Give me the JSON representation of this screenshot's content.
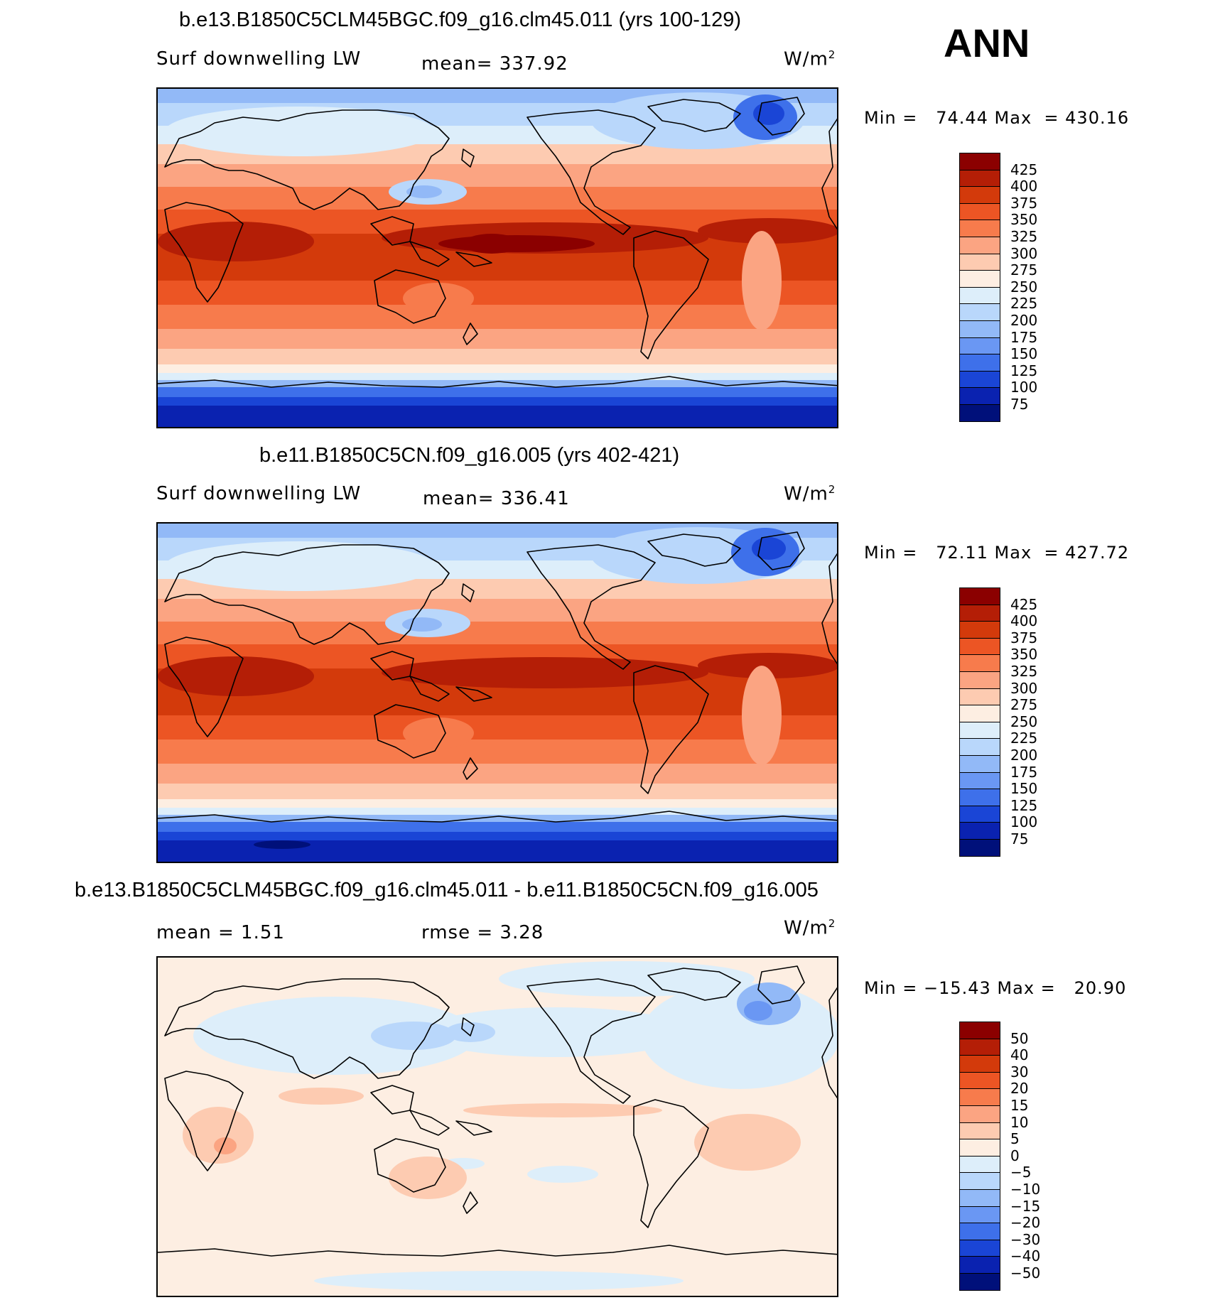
{
  "header": {
    "season": "ANN"
  },
  "panels": [
    {
      "title": "b.e13.B1850C5CLM45BGC.f09_g16.clm45.011 (yrs 100-129)",
      "variable": "Surf downwelling LW",
      "mean_text": "mean= 337.92",
      "units": "W/m",
      "units_exp": "2",
      "minmax_text": "Min =   74.44 Max  = 430.16"
    },
    {
      "title": "b.e11.B1850C5CN.f09_g16.005 (yrs 402-421)",
      "variable": "Surf downwelling LW",
      "mean_text": "mean= 336.41",
      "units": "W/m",
      "units_exp": "2",
      "minmax_text": "Min =   72.11 Max  = 427.72"
    },
    {
      "title": "b.e13.B1850C5CLM45BGC.f09_g16.clm45.011 - b.e11.B1850C5CN.f09_g16.005",
      "mean_text": "mean =     1.51",
      "rmse_text": "rmse =     3.28",
      "units": "W/m",
      "units_exp": "2",
      "minmax_text": "Min = −15.43 Max =   20.90"
    }
  ],
  "chart_data": [
    {
      "type": "heatmap",
      "title": "b.e13.B1850C5CLM45BGC.f09_g16.clm45.011 (yrs 100-129)",
      "variable": "Surf downwelling LW",
      "units": "W/m2",
      "mean": 337.92,
      "min": 74.44,
      "max": 430.16,
      "colorbar_levels": [
        425,
        400,
        375,
        350,
        325,
        300,
        275,
        250,
        225,
        200,
        175,
        150,
        125,
        100,
        75
      ],
      "colorbar_labels": [
        "425",
        "400",
        "375",
        "350",
        "325",
        "300",
        "275",
        "250",
        "225",
        "200",
        "175",
        "150",
        "125",
        "100",
        "75"
      ],
      "colors": [
        "#8b0000",
        "#b41e06",
        "#d33a0b",
        "#ec5524",
        "#f77b4c",
        "#fba482",
        "#fdcbb1",
        "#fdeee2",
        "#ddeefa",
        "#b9d7fb",
        "#92b9f7",
        "#6a97f3",
        "#3e70ea",
        "#1a45d6",
        "#0a22b0",
        "#00107a"
      ]
    },
    {
      "type": "heatmap",
      "title": "b.e11.B1850C5CN.f09_g16.005 (yrs 402-421)",
      "variable": "Surf downwelling LW",
      "units": "W/m2",
      "mean": 336.41,
      "min": 72.11,
      "max": 427.72,
      "colorbar_levels": [
        425,
        400,
        375,
        350,
        325,
        300,
        275,
        250,
        225,
        200,
        175,
        150,
        125,
        100,
        75
      ],
      "colorbar_labels": [
        "425",
        "400",
        "375",
        "350",
        "325",
        "300",
        "275",
        "250",
        "225",
        "200",
        "175",
        "150",
        "125",
        "100",
        "75"
      ],
      "colors": [
        "#8b0000",
        "#b41e06",
        "#d33a0b",
        "#ec5524",
        "#f77b4c",
        "#fba482",
        "#fdcbb1",
        "#fdeee2",
        "#ddeefa",
        "#b9d7fb",
        "#92b9f7",
        "#6a97f3",
        "#3e70ea",
        "#1a45d6",
        "#0a22b0",
        "#00107a"
      ]
    },
    {
      "type": "heatmap",
      "title": "b.e13.B1850C5CLM45BGC.f09_g16.clm45.011 - b.e11.B1850C5CN.f09_g16.005",
      "units": "W/m2",
      "mean": 1.51,
      "rmse": 3.28,
      "min": -15.43,
      "max": 20.9,
      "colorbar_levels": [
        50,
        40,
        30,
        20,
        15,
        10,
        5,
        0,
        -5,
        -10,
        -15,
        -20,
        -30,
        -40,
        -50
      ],
      "colorbar_labels": [
        "50",
        "40",
        "30",
        "20",
        "15",
        "10",
        "5",
        "0",
        "−5",
        "−10",
        "−15",
        "−20",
        "−30",
        "−40",
        "−50"
      ],
      "colors": [
        "#8b0000",
        "#b41e06",
        "#d33a0b",
        "#ec5524",
        "#f77b4c",
        "#fba482",
        "#fdcbb1",
        "#fdeee2",
        "#ddeefa",
        "#b9d7fb",
        "#92b9f7",
        "#6a97f3",
        "#3e70ea",
        "#1a45d6",
        "#0a22b0",
        "#00107a"
      ]
    }
  ]
}
